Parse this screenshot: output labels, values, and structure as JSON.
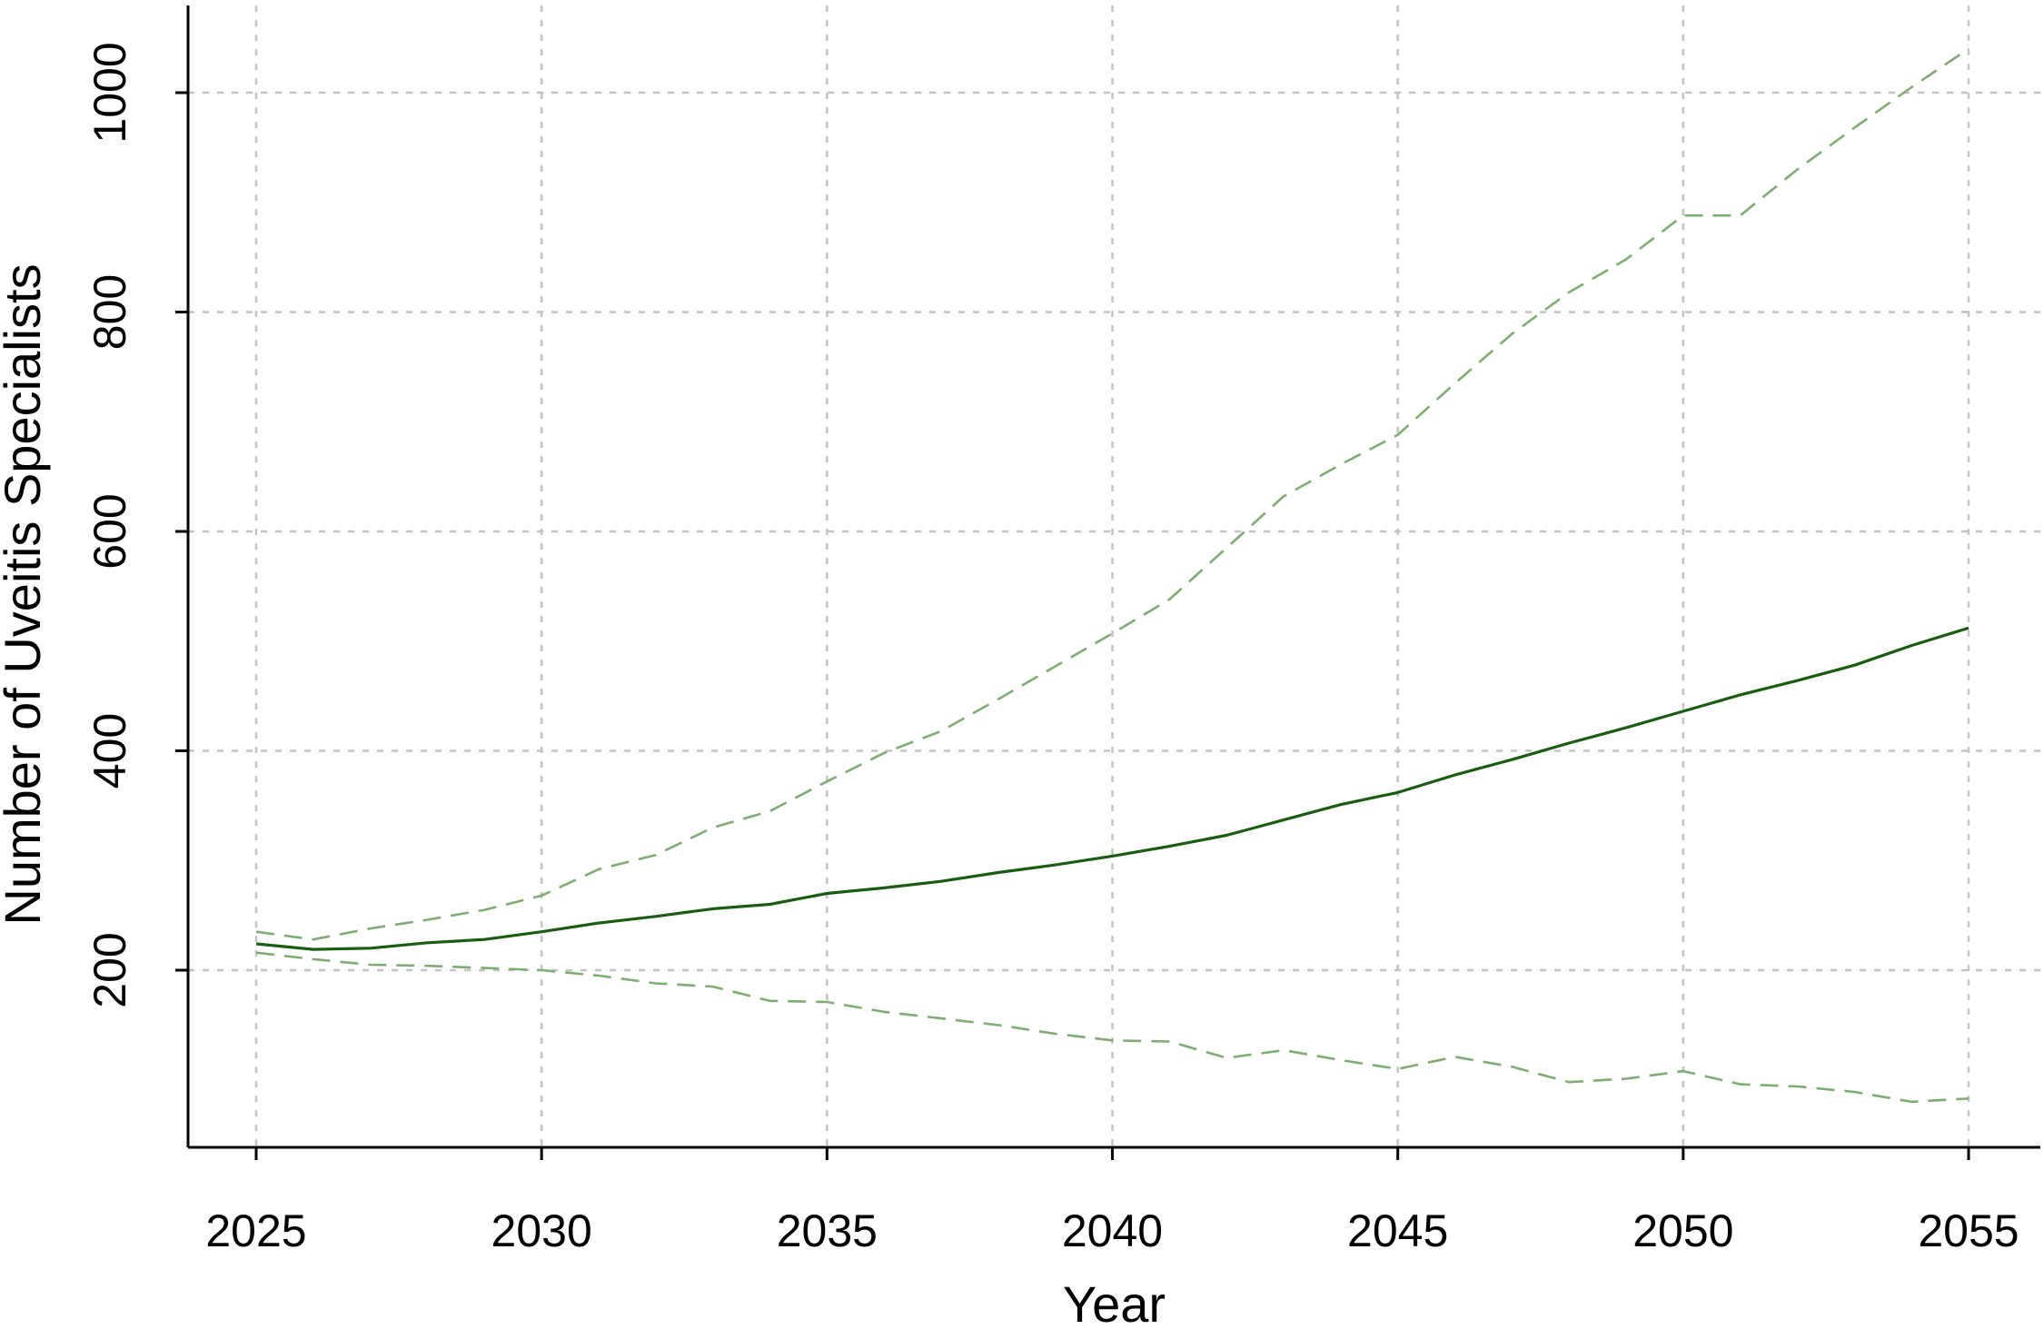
{
  "chart_data": {
    "type": "line",
    "xlabel": "Year",
    "ylabel": "Number of Uveitis Specialists",
    "xlim": [
      2025,
      2055
    ],
    "ylim": [
      75,
      1040
    ],
    "x_ticks": [
      2025,
      2030,
      2035,
      2040,
      2045,
      2050,
      2055
    ],
    "y_ticks": [
      200,
      400,
      600,
      800,
      1000
    ],
    "grid": true,
    "colors": {
      "mean": "#1a5c12",
      "bounds": "#7fac72",
      "grid": "#c4c4c4",
      "axis": "#000000"
    },
    "x": [
      2025,
      2026,
      2027,
      2028,
      2029,
      2030,
      2031,
      2032,
      2033,
      2034,
      2035,
      2036,
      2037,
      2038,
      2039,
      2040,
      2041,
      2042,
      2043,
      2044,
      2045,
      2046,
      2047,
      2048,
      2049,
      2050,
      2051,
      2052,
      2053,
      2054,
      2055
    ],
    "series": [
      {
        "style": "solid",
        "values": [
          224,
          219,
          220,
          225,
          228,
          235,
          243,
          249,
          256,
          260,
          270,
          275,
          281,
          289,
          296,
          304,
          313,
          323,
          337,
          351,
          362,
          378,
          392,
          407,
          421,
          436,
          451,
          464,
          478,
          496,
          512
        ]
      },
      {
        "style": "dashed",
        "values": [
          235,
          228,
          238,
          246,
          255,
          268,
          292,
          305,
          330,
          345,
          372,
          398,
          418,
          447,
          477,
          507,
          538,
          585,
          632,
          661,
          688,
          735,
          780,
          818,
          848,
          888,
          888,
          930,
          968,
          1005,
          1040
        ]
      },
      {
        "style": "dashed",
        "values": [
          216,
          210,
          205,
          204,
          202,
          200,
          195,
          188,
          185,
          172,
          171,
          162,
          156,
          150,
          142,
          136,
          135,
          120,
          127,
          118,
          110,
          121,
          112,
          98,
          101,
          108,
          96,
          94,
          89,
          80,
          83
        ]
      }
    ]
  }
}
